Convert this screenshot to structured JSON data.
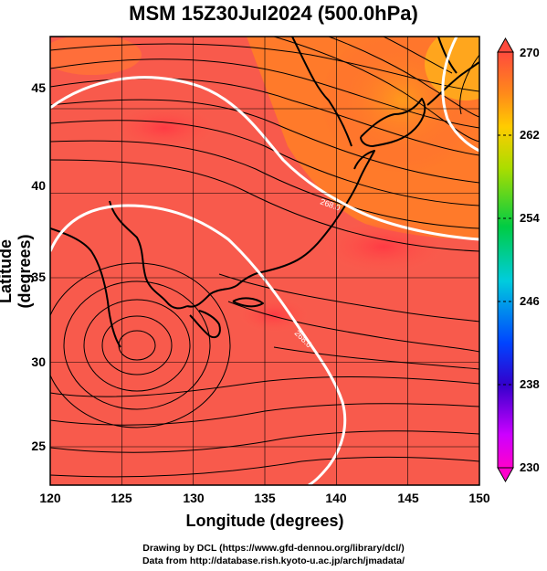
{
  "title": "MSM 15Z30Jul2024 (500.0hPa)",
  "axes": {
    "xlabel": "Longitude (degrees)",
    "ylabel": "Latitude  (degrees)",
    "xticks": [
      "120",
      "125",
      "130",
      "135",
      "140",
      "145",
      "150"
    ],
    "yticks": [
      "45",
      "40",
      "35",
      "30",
      "25"
    ]
  },
  "colorbar": {
    "ticks": [
      "270",
      "262",
      "254",
      "246",
      "238",
      "230"
    ],
    "min": 230,
    "max": 270
  },
  "contours": {
    "labels": [
      "268.0",
      "268.0"
    ]
  },
  "credits": {
    "line1": "Drawing by DCL (https://www.gfd-dennou.org/library/dcl/)",
    "line2": "Data from http://database.rish.kyoto-u.ac.jp/arch/jmadata/"
  }
}
